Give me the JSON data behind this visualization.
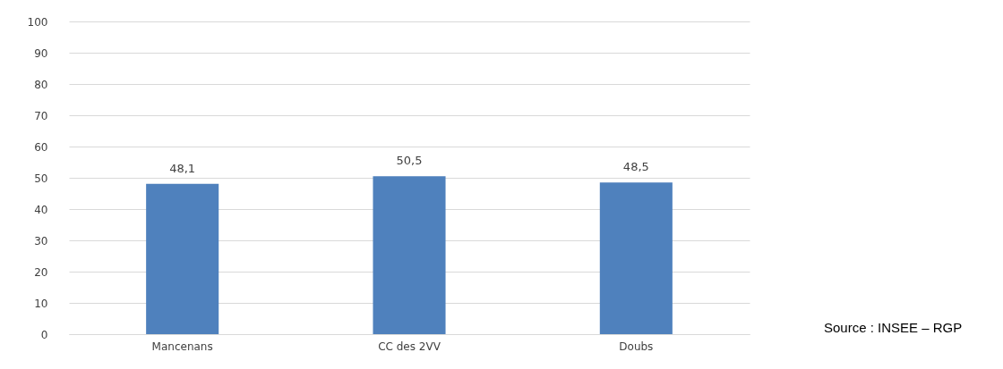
{
  "chart_data": {
    "type": "bar",
    "categories": [
      "Mancenans",
      "CC des 2VV",
      "Doubs"
    ],
    "values": [
      48.1,
      50.5,
      48.5
    ],
    "value_labels": [
      "48,1",
      "50,5",
      "48,5"
    ],
    "color": "#4f81bd",
    "ylim": [
      0,
      100
    ],
    "yticks": [
      0,
      10,
      20,
      30,
      40,
      50,
      60,
      70,
      80,
      90,
      100
    ],
    "grid": "y",
    "annotations": [
      "Source : INSEE – RGP"
    ]
  }
}
